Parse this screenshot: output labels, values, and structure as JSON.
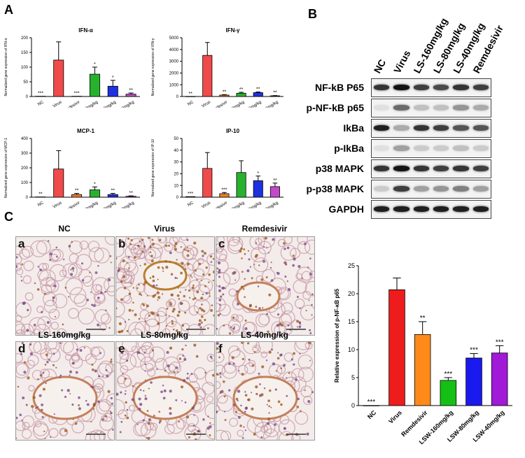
{
  "panels": {
    "A": "A",
    "B": "B",
    "C": "C"
  },
  "chart_data": [
    {
      "type": "bar",
      "title": "IFN-α",
      "ylabel": "Normalized gene expression of IFN-α",
      "ylim": [
        0,
        200
      ],
      "yticks": [
        0,
        50,
        100,
        150,
        200
      ],
      "categories": [
        "NC",
        "Virus",
        "Remdesivir",
        "LS-40mg/kg",
        "LS-80mg/kg",
        "LS-160mg/kg"
      ],
      "values": [
        1,
        124,
        1,
        76,
        35,
        8
      ],
      "errors": [
        0,
        62,
        0,
        24,
        20,
        4
      ],
      "significance": [
        "***",
        "",
        "***",
        "*",
        "*",
        "**"
      ],
      "colors": [
        "#8a8a8a",
        "#f04a4a",
        "#f07d2a",
        "#27b22d",
        "#1e30e0",
        "#c24ac8"
      ]
    },
    {
      "type": "bar",
      "title": "IFN-γ",
      "ylabel": "Normalized gene expression of IFN-γ",
      "ylim": [
        0,
        5000
      ],
      "yticks": [
        0,
        1000,
        2000,
        3000,
        4000,
        5000
      ],
      "categories": [
        "NC",
        "Virus",
        "Remdesivir",
        "LS-40mg/kg",
        "LS-80mg/kg",
        "LS-160mg/kg"
      ],
      "values": [
        10,
        3500,
        120,
        280,
        330,
        60
      ],
      "errors": [
        0,
        1100,
        40,
        80,
        60,
        20
      ],
      "significance": [
        "**",
        "",
        "**",
        "**",
        "**",
        "**"
      ],
      "colors": [
        "#8a8a8a",
        "#f04a4a",
        "#f07d2a",
        "#27b22d",
        "#1e30e0",
        "#c24ac8"
      ]
    },
    {
      "type": "bar",
      "title": "MCP-1",
      "ylabel": "Normalized gene expression of MCP-1",
      "ylim": [
        0,
        400
      ],
      "yticks": [
        0,
        100,
        200,
        300,
        400
      ],
      "categories": [
        "NC",
        "Virus",
        "Remdesivir",
        "LS-40mg/kg",
        "LS-80mg/kg",
        "LS-160mg/kg"
      ],
      "values": [
        2,
        192,
        18,
        50,
        18,
        6
      ],
      "errors": [
        0,
        125,
        8,
        20,
        8,
        3
      ],
      "significance": [
        "**",
        "",
        "**",
        "*",
        "**",
        "**"
      ],
      "colors": [
        "#8a8a8a",
        "#f04a4a",
        "#f07d2a",
        "#27b22d",
        "#1e30e0",
        "#c24ac8"
      ]
    },
    {
      "type": "bar",
      "title": "IP-10",
      "ylabel": "Normalized gene expression of IP-10",
      "ylim": [
        0,
        50
      ],
      "yticks": [
        0,
        10,
        20,
        30,
        40,
        50
      ],
      "categories": [
        "NC",
        "Virus",
        "Remdesivir",
        "LS-40mg/kg",
        "LS-80mg/kg",
        "LS-160mg/kg"
      ],
      "values": [
        0.5,
        24.5,
        3,
        21,
        14,
        9
      ],
      "errors": [
        0,
        13.5,
        1,
        10,
        4,
        3
      ],
      "significance": [
        "***",
        "",
        "***",
        "",
        "*",
        "**"
      ],
      "colors": [
        "#8a8a8a",
        "#f04a4a",
        "#f07d2a",
        "#27b22d",
        "#1e30e0",
        "#c24ac8"
      ]
    },
    {
      "type": "bar",
      "title": "",
      "ylabel": "Relative expression of p-NF-κB p65",
      "ylim": [
        0,
        25
      ],
      "yticks": [
        0,
        5,
        10,
        15,
        20,
        25
      ],
      "categories": [
        "NC",
        "Virus",
        "Remdesivir",
        "LSW-160mg/kg",
        "LSW-80mg/kg",
        "LSW-40mg/kg"
      ],
      "values": [
        0,
        20.7,
        12.7,
        4.5,
        8.5,
        9.4
      ],
      "errors": [
        0,
        2.1,
        2.3,
        0.5,
        0.8,
        1.3
      ],
      "significance": [
        "***",
        "",
        "**",
        "***",
        "***",
        "***"
      ],
      "colors": [
        "#8a8a8a",
        "#ee1c1c",
        "#ff8a1a",
        "#15c015",
        "#1a1aee",
        "#a01ad8"
      ]
    }
  ],
  "western_blot": {
    "lanes": [
      "NC",
      "Virus",
      "LS-160mg/kg",
      "LS-80mg/kg",
      "LS-40mg/kg",
      "Remdesivir"
    ],
    "rows": [
      {
        "label": "NF-kB P65",
        "intensity": [
          0.85,
          1.0,
          0.8,
          0.75,
          0.85,
          0.8
        ]
      },
      {
        "label": "p-NF-kB p65",
        "intensity": [
          0.05,
          0.6,
          0.2,
          0.2,
          0.4,
          0.3
        ]
      },
      {
        "label": "IkBa",
        "intensity": [
          0.95,
          0.3,
          0.85,
          0.8,
          0.7,
          0.7
        ]
      },
      {
        "label": "p-IkBa",
        "intensity": [
          0.05,
          0.35,
          0.15,
          0.15,
          0.2,
          0.15
        ]
      },
      {
        "label": "p38 MAPK",
        "intensity": [
          0.85,
          1.0,
          0.85,
          0.8,
          0.85,
          0.8
        ]
      },
      {
        "label": "p-p38 MAPK",
        "intensity": [
          0.15,
          0.8,
          0.35,
          0.4,
          0.5,
          0.35
        ]
      },
      {
        "label": "GAPDH",
        "intensity": [
          0.95,
          0.95,
          0.95,
          0.95,
          0.95,
          0.95
        ]
      }
    ]
  },
  "micrographs": [
    {
      "letter": "a",
      "title": "NC",
      "stain": 0.1
    },
    {
      "letter": "b",
      "title": "Virus",
      "stain": 0.9
    },
    {
      "letter": "c",
      "title": "Remdesivir",
      "stain": 0.45
    },
    {
      "letter": "d",
      "title": "LS-160mg/kg",
      "stain": 0.3
    },
    {
      "letter": "e",
      "title": "LS-80mg/kg",
      "stain": 0.35
    },
    {
      "letter": "f",
      "title": "LS-40mg/kg",
      "stain": 0.4
    }
  ]
}
